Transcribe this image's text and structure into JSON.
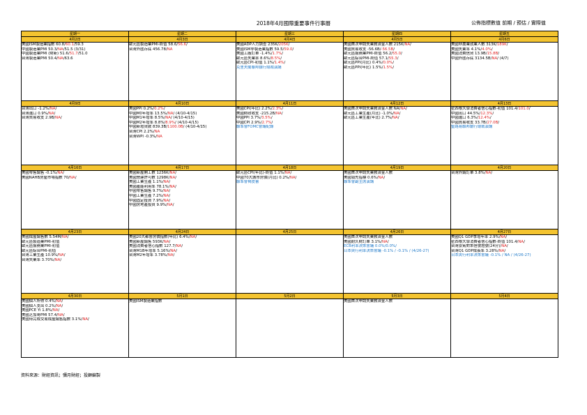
{
  "title": "2018年4月國際重要事件行事曆",
  "legend": "公佈指標數值  前期 / 預估 / 實際值",
  "weekdays": [
    "星期一",
    "星期二",
    "星期三",
    "星期四",
    "星期五"
  ],
  "weeks": [
    {
      "dates": [
        "4月2日",
        "4月3日",
        "4月4日",
        "4月5日",
        "4月6日"
      ],
      "cells": [
        [
          [
            "美國ISM製造業指數 60.8/",
            [
              "60.1",
              "r"
            ],
            "/59.3"
          ],
          [
            "中國製造業PMI 50.3/",
            [
              "NA",
              "r"
            ],
            "/51.5 (3/31)"
          ],
          [
            "中國製造業PMI (財新) 51.6/",
            [
              "51.7",
              "r"
            ],
            "/51.0"
          ],
          [
            "台灣製造業PMI 50.4/",
            [
              "NA",
              "r"
            ],
            "/63.6"
          ]
        ],
        [
          [
            "歐元區製造業PMI-終值 58.6/",
            [
              "56.6",
              "r"
            ],
            "/"
          ],
          [
            "台灣外匯存底 456.78/",
            [
              "NA",
              "r"
            ]
          ]
        ],
        [
          [
            "美國ADP人力調查 235K/",
            [
              "205K",
              "r"
            ],
            "/"
          ],
          [
            "美國ISM非製造業指數 59.5/",
            [
              "59.0",
              "r"
            ],
            "/"
          ],
          [
            "美國工廠訂單 -1.4%/",
            [
              "1.7%",
              "r"
            ],
            "/"
          ],
          [
            "歐元區失業率 8.6%/",
            [
              "8.5%",
              "r"
            ],
            "/"
          ],
          [
            "歐元區CPI-初值 1.1%/",
            [
              "1.4%",
              "r"
            ],
            "/"
          ],
          [
            [
              "克里夫蘭聯邦銀行總裁演講",
              "b"
            ]
          ]
        ],
        [
          [
            "美國首次申請失業救濟金人數 215K/",
            [
              "NA",
              "r"
            ],
            "/"
          ],
          [
            "美國貿易收支 -56.6B/",
            [
              "-56.5B",
              "r"
            ],
            "/"
          ],
          [
            "歐元區服務業PMI-終值 56.2/",
            [
              "55.0",
              "r"
            ],
            "/"
          ],
          [
            "歐元區綜合PMI-終值 57.1/",
            [
              "55.3",
              "r"
            ],
            "/"
          ],
          [
            "歐元區PPI(月比) 0.4%/",
            [
              "0.0%",
              "r"
            ],
            "/"
          ],
          [
            "歐元區PPI(年比) 1.5%/",
            [
              "1.5%",
              "r"
            ],
            "/"
          ]
        ],
        [
          [
            "美國非農業就業人數 313K/",
            [
              "189K",
              "r"
            ],
            "/"
          ],
          [
            "美國失業率 4.1%/",
            [
              "4.0%",
              "r"
            ],
            "/"
          ],
          [
            "美國消費信貸 13.9B/",
            [
              "15.8B",
              "r"
            ],
            "/"
          ],
          [
            "中國外匯存底 3134.5B/",
            [
              "NA",
              "r"
            ],
            "/ (4/7)"
          ]
        ]
      ]
    },
    {
      "dates": [
        "4月9日",
        "4月10日",
        "4月11日",
        "4月12日",
        "4月13日"
      ],
      "cells": [
        [
          [
            "台灣出口 -1.2%/",
            [
              "NA",
              "r"
            ],
            "/"
          ],
          [
            "台灣進口 0.9%/",
            [
              "NA",
              "r"
            ],
            "/"
          ],
          [
            "台灣貿易收支 2.9B/",
            [
              "NA",
              "r"
            ],
            "/"
          ]
        ],
        [
          [
            "美國PPI 0.2%/",
            [
              "0.2%",
              "r"
            ],
            "/"
          ],
          [
            "中國M0年增率 13.5%/",
            [
              "NA",
              "r"
            ],
            "/ (4/10-4/15)"
          ],
          [
            "中國M1年增率 8.5%/",
            [
              "NA",
              "r"
            ],
            "/ (4/10-4/15)"
          ],
          [
            "中國M2年增率  8.8%/",
            [
              "8.9%",
              "r"
            ],
            "/ (4/10-4/15)"
          ],
          [
            "中國新增貸款  839.3B/",
            [
              "1100.0B",
              "r"
            ],
            "/ (4/10-4/15)"
          ],
          [
            "台灣CPI 2.2%/",
            [
              "NA",
              "r"
            ]
          ],
          [
            "台灣WPI -0.3%/",
            [
              "NA",
              "r"
            ]
          ]
        ],
        [
          [
            "美國CPI(年比) 2.2%/",
            [
              "2.3%",
              "r"
            ],
            "/"
          ],
          [
            "美國財政收支 -215.2B/",
            [
              "NA",
              "r"
            ],
            "/"
          ],
          [
            "中國PPI 3.7%/",
            [
              "3.5%",
              "r"
            ],
            "/"
          ],
          [
            "中國CPI 2.9%/",
            [
              "2.7%",
              "r"
            ],
            "/"
          ],
          [
            [
              "聯準會FOMC會議紀錄",
              "b"
            ]
          ]
        ],
        [
          [
            "美國首次申請失業救濟金人數 NA/",
            [
              "NA",
              "r"
            ],
            "/"
          ],
          [
            "歐元區工業生產(月比) -1.0%/",
            [
              "NA",
              "r"
            ],
            "/"
          ],
          [
            "歐元區工業生產(年比) 2.7%/",
            [
              "NA",
              "r"
            ],
            "/"
          ]
        ],
        [
          [
            "密西根大學消費者信心指數-初值 101.4/",
            [
              "101.0",
              "r"
            ],
            "/"
          ],
          [
            "中國出口 44.5%/",
            [
              "12.3%",
              "r"
            ],
            "/"
          ],
          [
            "中國進口 6.3%/",
            [
              "12.4%",
              "r"
            ],
            "/"
          ],
          [
            "中國貿易收支 33.7B/",
            [
              "27.0B",
              "r"
            ],
            "/"
          ],
          [
            [
              "聖路易聯邦銀行總裁演講",
              "b"
            ]
          ]
        ]
      ]
    },
    {
      "dates": [
        "4月16日",
        "4月17日",
        "4月18日",
        "4月19日",
        "4月20日"
      ],
      "cells": [
        [
          [
            "美國零售銷售 -0.1%/",
            [
              "NA",
              "r"
            ],
            "/"
          ],
          [
            "美國NAHB房屋市場指數 70/",
            [
              "NA",
              "r"
            ],
            "/"
          ]
        ],
        [
          [
            "美國新屋開工數 1236K/",
            [
              "NA",
              "r"
            ],
            "/"
          ],
          [
            "美國營建許可數 1298K/",
            [
              "NA",
              "r"
            ],
            "/"
          ],
          [
            "美國工業生產 1.1%/",
            [
              "NA",
              "r"
            ],
            "/"
          ],
          [
            "美國產能利用率 78.1%/",
            [
              "NA",
              "r"
            ],
            "/"
          ],
          [
            "中國零售銷售 9.7%/",
            [
              "NA",
              "r"
            ],
            "/"
          ],
          [
            "中國工業生產 7.2%/",
            [
              "NA",
              "r"
            ],
            "/"
          ],
          [
            "中國固定投資 7.9%/",
            [
              "NA",
              "r"
            ],
            "/"
          ],
          [
            "中國房地產投資 9.9%/",
            [
              "NA",
              "r"
            ],
            "/"
          ]
        ],
        [
          [
            "歐元區CPI(年比)-終值 1.1%/",
            [
              "NA",
              "r"
            ],
            "/"
          ],
          [
            "中國70大城市房價(月比) 0.2%/",
            [
              "NA",
              "r"
            ],
            "/"
          ],
          [
            [
              "聯準會褐皮書",
              "b"
            ]
          ]
        ],
        [
          [
            "美國首次申請失業救濟金人數"
          ],
          [
            "美國領先指標 0.6%/",
            [
              "NA",
              "r"
            ],
            "/"
          ],
          [
            [
              "聯準會副主席演講",
              "b"
            ]
          ]
        ],
        [
          [
            "台灣外銷訂單 3.8%/",
            [
              "NA",
              "r"
            ],
            "/"
          ]
        ]
      ]
    },
    {
      "dates": [
        "4月23日",
        "4月24日",
        "4月25日",
        "4月26日",
        "4月27日"
      ],
      "cells": [
        [
          [
            "美國成屋銷售數 5.54M/",
            [
              "NA",
              "r"
            ],
            "/"
          ],
          [
            "歐元區製造業PMI-初值"
          ],
          [
            "歐元區服務業PMI-初值"
          ],
          [
            "歐元區綜合PMI-初值"
          ],
          [
            "台灣工業生產 10.9%/",
            [
              "NA",
              "r"
            ],
            "/"
          ],
          [
            "台灣失業率 3.70%/",
            [
              "NA",
              "r"
            ],
            "/"
          ]
        ],
        [
          [
            "美國20大都會房價指數(年比) 6.4%/",
            [
              "NA",
              "r"
            ],
            "/"
          ],
          [
            "美國新屋銷售 593K/",
            [
              "NA",
              "r"
            ],
            "/"
          ],
          [
            "美國消費者信心指數 127.7/",
            [
              "NA",
              "r"
            ],
            "/"
          ],
          [
            "台灣M1B年增率 5.16%/",
            [
              "NA",
              "r"
            ],
            "/"
          ],
          [
            "台灣M2年增率 3.78%/",
            [
              "NA",
              "r"
            ],
            "/"
          ]
        ],
        [],
        [
          [
            "美國首次申請失業救濟金人數"
          ],
          [
            "美國耐久財訂單 3.1%/",
            [
              "NA",
              "r"
            ],
            "/"
          ],
          [
            [
              "ECB利率決策會議 0.0%/0.0%/",
              "b"
            ]
          ],
          [
            [
              "日本央行利率決策會議 -0.1% / -0.1% / (4/26-27)",
              "b"
            ]
          ]
        ],
        [
          [
            "美國Q1 GDP季增年率 2.9%/",
            [
              "NA",
              "r"
            ],
            "/"
          ],
          [
            "密西根大學消費者信心指數-終值 101.4/",
            [
              "NA",
              "r"
            ],
            "/"
          ],
          [
            "台灣景氣對策信號燈號(24分)/",
            [
              "NA",
              "r"
            ],
            "/"
          ],
          [
            "台灣Q1 GDP成長率 3.28%/",
            [
              "NA",
              "r"
            ],
            "/"
          ],
          [
            [
              "日本央行利率決策會議 -0.1% / NA / (4/26-27)",
              "b"
            ]
          ]
        ]
      ]
    },
    {
      "dates": [
        "4月30日",
        "5月1日",
        "5月2日",
        "5月3日",
        "5月4日"
      ],
      "cells": [
        [
          [
            "美國個人所得 0.4%/",
            [
              "NA",
              "r"
            ],
            "/"
          ],
          [
            "美國個人支出 0.2%/",
            [
              "NA",
              "r"
            ],
            "/"
          ],
          [
            "美國PCE Yi 1.8%/",
            [
              "NA",
              "r"
            ],
            "/"
          ],
          [
            "美國芝加哥PMI 57.4/",
            [
              "NA",
              "r"
            ],
            "/"
          ],
          [
            "美國待完成交易成屋銷售指數 3.1%/",
            [
              "NA",
              "r"
            ],
            "/"
          ]
        ],
        [
          [
            "美國ISM製造業指數"
          ]
        ],
        [],
        [
          [
            "美國首次申請失業救濟金人數"
          ]
        ],
        []
      ]
    }
  ],
  "footer": "資料來源：財經資訊；彌月財經；投顧編製"
}
